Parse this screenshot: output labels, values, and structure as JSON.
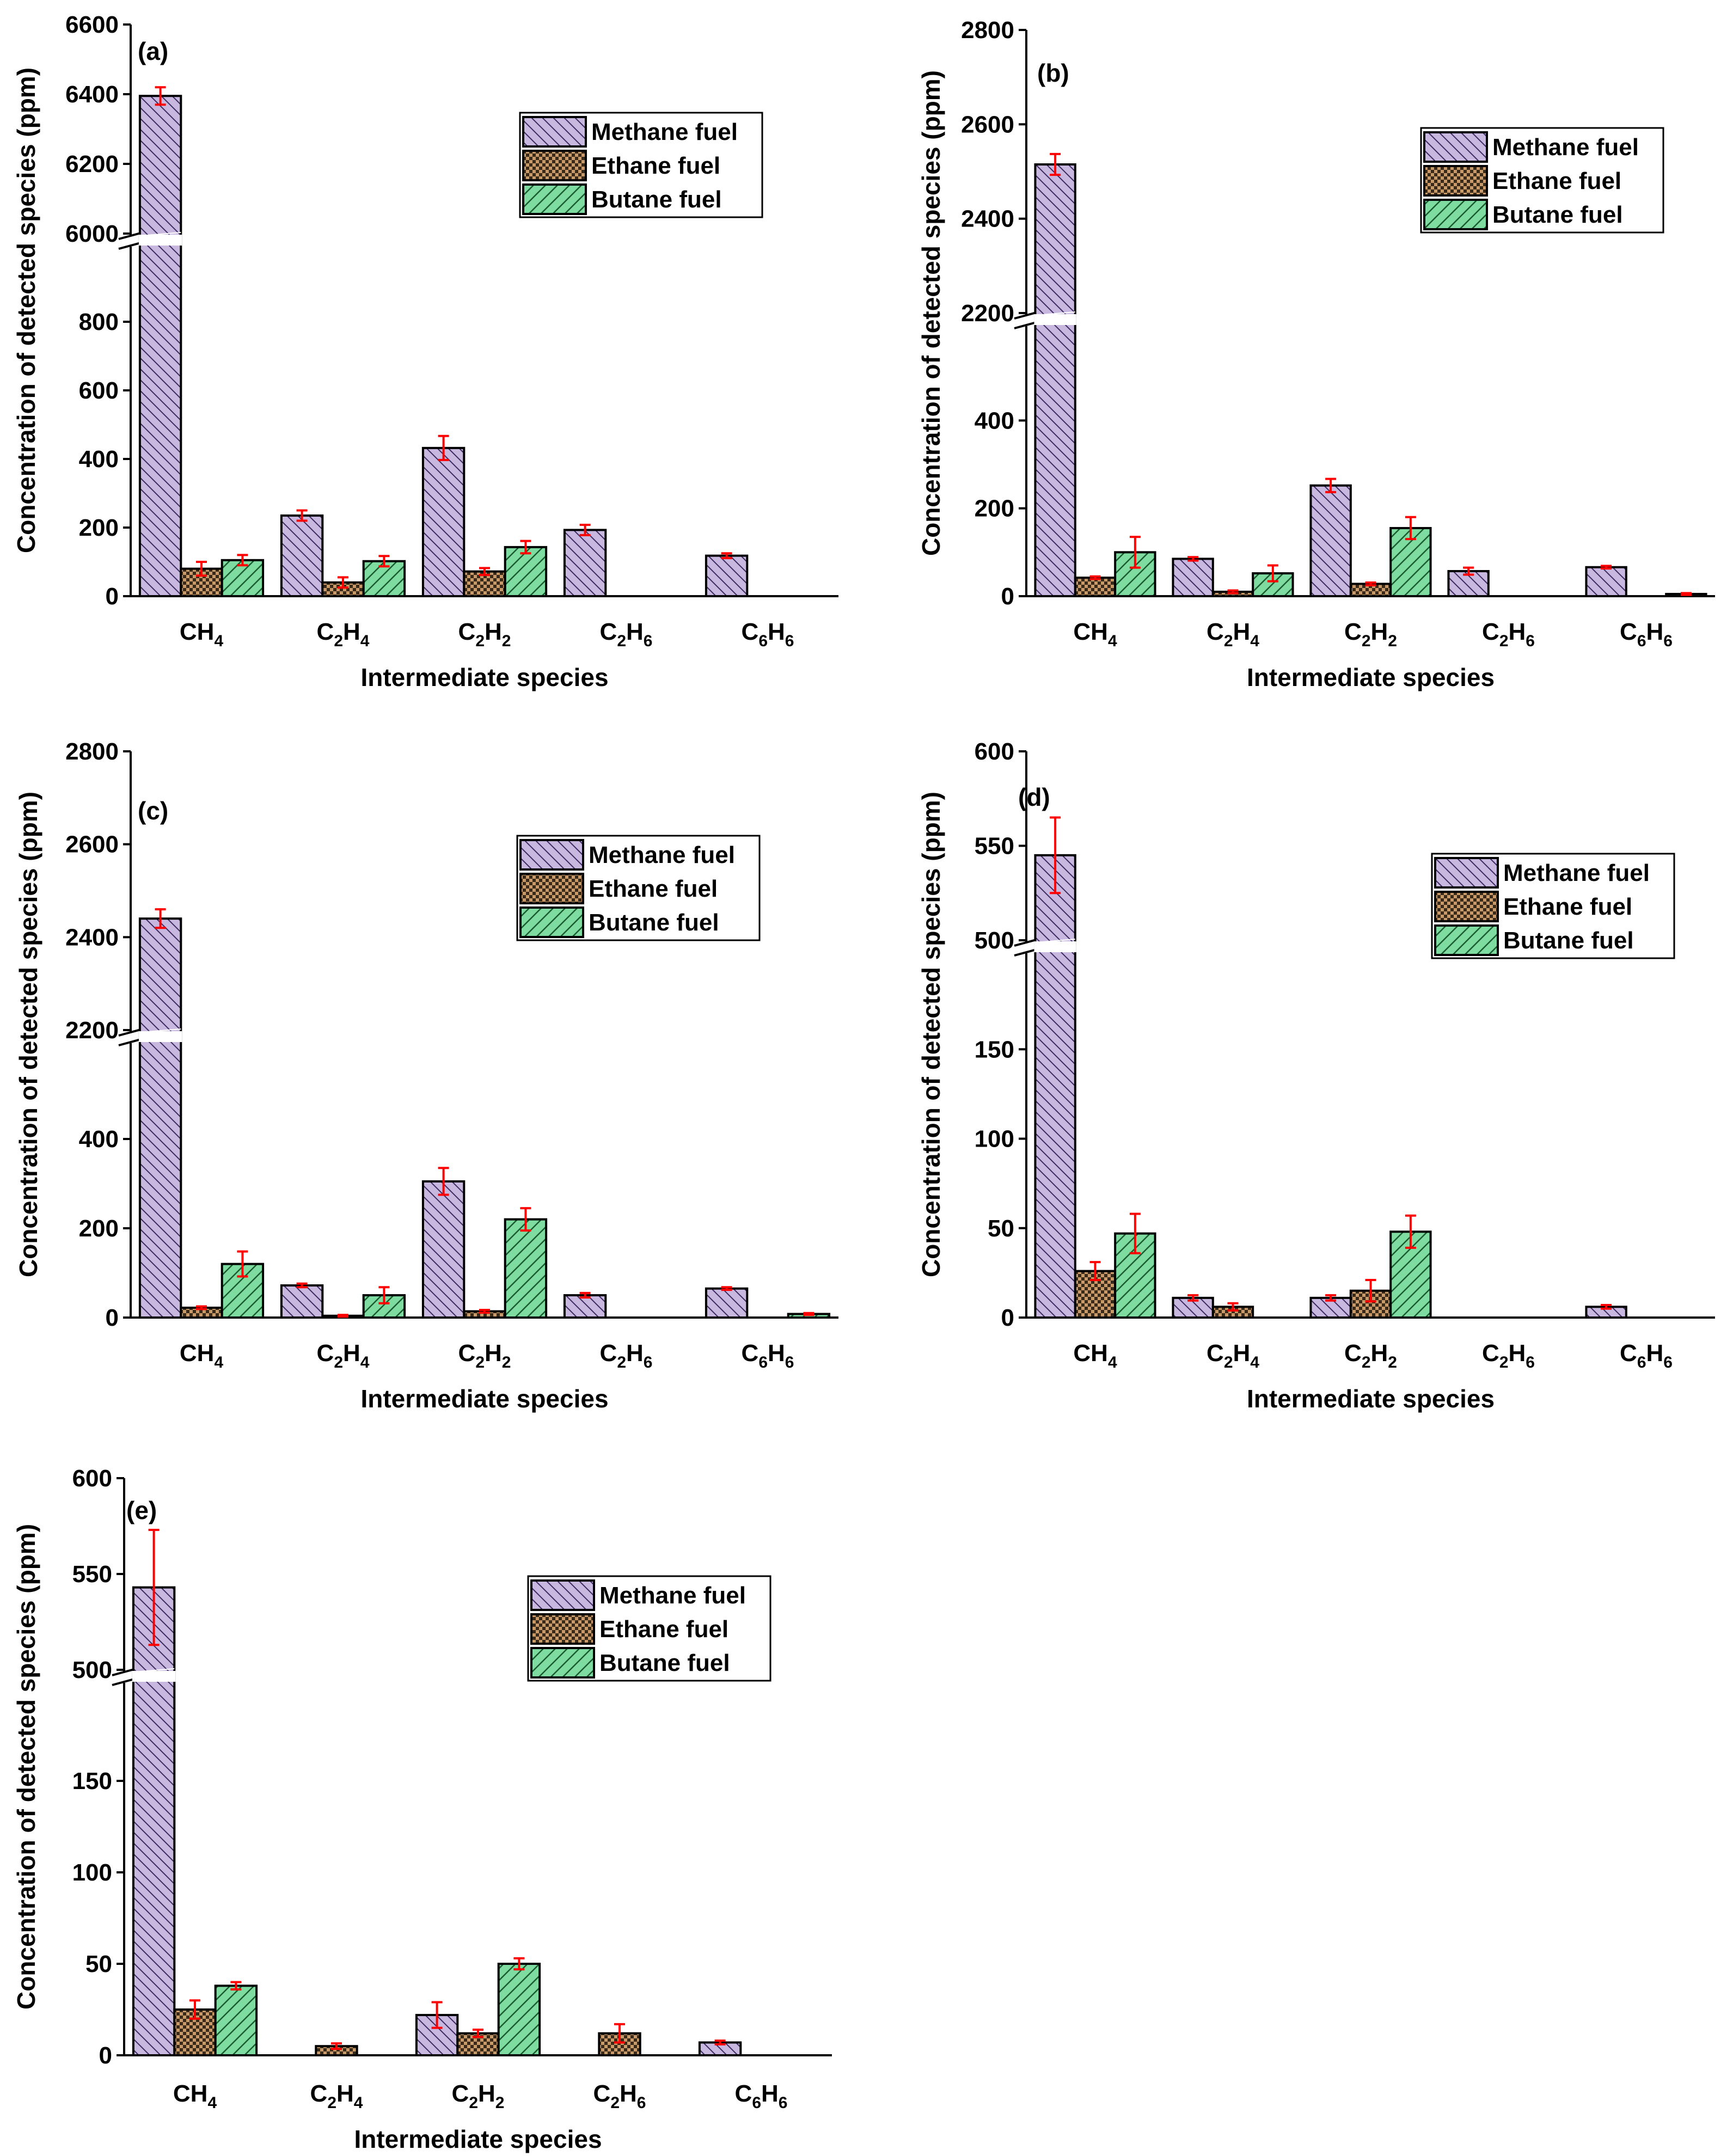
{
  "colors": {
    "methane": "#c8b8e0",
    "ethane": "#c89a6a",
    "butane": "#7fdca0",
    "error_bar": "#ff0000"
  },
  "chart_data": [
    {
      "type": "bar",
      "panel_label": "(a)",
      "categories": [
        "CH4",
        "C2H4",
        "C2H2",
        "C2H6",
        "C6H6"
      ],
      "series": [
        {
          "name": "Methane fuel",
          "values": [
            6395,
            235,
            432,
            193,
            118
          ],
          "errors": [
            25,
            15,
            35,
            15,
            7
          ]
        },
        {
          "name": "Ethane fuel",
          "values": [
            80,
            40,
            72,
            0,
            0
          ],
          "errors": [
            20,
            15,
            10,
            0,
            0
          ]
        },
        {
          "name": "Butane fuel",
          "values": [
            105,
            102,
            143,
            0,
            0
          ],
          "errors": [
            15,
            15,
            18,
            0,
            0
          ]
        }
      ],
      "xlabel": "Intermediate species",
      "ylabel": "Concentration of detected species (ppm)",
      "y_break": {
        "lower": [
          0,
          1000
        ],
        "upper": [
          6000,
          6600
        ]
      },
      "yticks_lower": [
        0,
        200,
        400,
        600,
        800
      ],
      "yticks_upper": [
        6000,
        6200,
        6400,
        6600
      ],
      "legend": "top-right"
    },
    {
      "type": "bar",
      "panel_label": "(b)",
      "categories": [
        "CH4",
        "C2H4",
        "C2H2",
        "C2H6",
        "C6H6"
      ],
      "series": [
        {
          "name": "Methane fuel",
          "values": [
            2515,
            85,
            252,
            57,
            66
          ],
          "errors": [
            22,
            4,
            15,
            8,
            3
          ]
        },
        {
          "name": "Ethane fuel",
          "values": [
            42,
            10,
            28,
            0,
            0
          ],
          "errors": [
            3,
            3,
            3,
            0,
            0
          ]
        },
        {
          "name": "Butane fuel",
          "values": [
            100,
            52,
            155,
            0,
            5
          ],
          "errors": [
            35,
            18,
            25,
            0,
            2
          ]
        }
      ],
      "xlabel": "Intermediate species",
      "ylabel": "Concentration of detected species (ppm)",
      "y_break": {
        "lower": [
          0,
          600
        ],
        "upper": [
          2200,
          2800
        ]
      },
      "yticks_lower": [
        0,
        200,
        400
      ],
      "yticks_upper": [
        2200,
        2400,
        2600,
        2800
      ],
      "legend": "top-right"
    },
    {
      "type": "bar",
      "panel_label": "(c)",
      "categories": [
        "CH4",
        "C2H4",
        "C2H2",
        "C2H6",
        "C6H6"
      ],
      "series": [
        {
          "name": "Methane fuel",
          "values": [
            2440,
            72,
            305,
            50,
            65
          ],
          "errors": [
            20,
            4,
            30,
            5,
            3
          ]
        },
        {
          "name": "Ethane fuel",
          "values": [
            22,
            4,
            14,
            0,
            0
          ],
          "errors": [
            3,
            2,
            3,
            0,
            0
          ]
        },
        {
          "name": "Butane fuel",
          "values": [
            120,
            50,
            220,
            0,
            8
          ],
          "errors": [
            28,
            18,
            25,
            0,
            2
          ]
        }
      ],
      "xlabel": "Intermediate species",
      "ylabel": "Concentration of detected species (ppm)",
      "y_break": {
        "lower": [
          0,
          600
        ],
        "upper": [
          2200,
          2800
        ]
      },
      "yticks_lower": [
        0,
        200,
        400
      ],
      "yticks_upper": [
        2200,
        2400,
        2600,
        2800
      ],
      "legend": "top-right"
    },
    {
      "type": "bar",
      "panel_label": "(d)",
      "categories": [
        "CH4",
        "C2H4",
        "C2H2",
        "C2H6",
        "C6H6"
      ],
      "series": [
        {
          "name": "Methane fuel",
          "values": [
            545,
            11,
            11,
            0,
            6
          ],
          "errors": [
            20,
            1.5,
            1.5,
            0,
            1
          ]
        },
        {
          "name": "Ethane fuel",
          "values": [
            26,
            6,
            15,
            0,
            0
          ],
          "errors": [
            5,
            2,
            6,
            0,
            0
          ]
        },
        {
          "name": "Butane fuel",
          "values": [
            47,
            0,
            48,
            0,
            0
          ],
          "errors": [
            11,
            0,
            9,
            0,
            0
          ]
        }
      ],
      "xlabel": "Intermediate species",
      "ylabel": "Concentration of detected species (ppm)",
      "y_break": {
        "lower": [
          0,
          200
        ],
        "upper": [
          500,
          600
        ]
      },
      "yticks_lower": [
        0,
        50,
        100,
        150
      ],
      "yticks_upper": [
        500,
        550,
        600
      ],
      "legend": "top-right"
    },
    {
      "type": "bar",
      "panel_label": "(e)",
      "categories": [
        "CH4",
        "C2H4",
        "C2H2",
        "C2H6",
        "C6H6"
      ],
      "series": [
        {
          "name": "Methane fuel",
          "values": [
            543,
            0,
            22,
            0,
            7
          ],
          "errors": [
            30,
            0,
            7,
            0,
            1
          ]
        },
        {
          "name": "Ethane fuel",
          "values": [
            25,
            5,
            12,
            12,
            0
          ],
          "errors": [
            5,
            1.5,
            2,
            5,
            0
          ]
        },
        {
          "name": "Butane fuel",
          "values": [
            38,
            0,
            50,
            0,
            0
          ],
          "errors": [
            2,
            0,
            3,
            0,
            0
          ]
        }
      ],
      "xlabel": "Intermediate species",
      "ylabel": "Concentration of detected species (ppm)",
      "y_break": {
        "lower": [
          0,
          200
        ],
        "upper": [
          500,
          600
        ]
      },
      "yticks_lower": [
        0,
        50,
        100,
        150
      ],
      "yticks_upper": [
        500,
        550,
        600
      ],
      "legend": "top-right"
    }
  ]
}
